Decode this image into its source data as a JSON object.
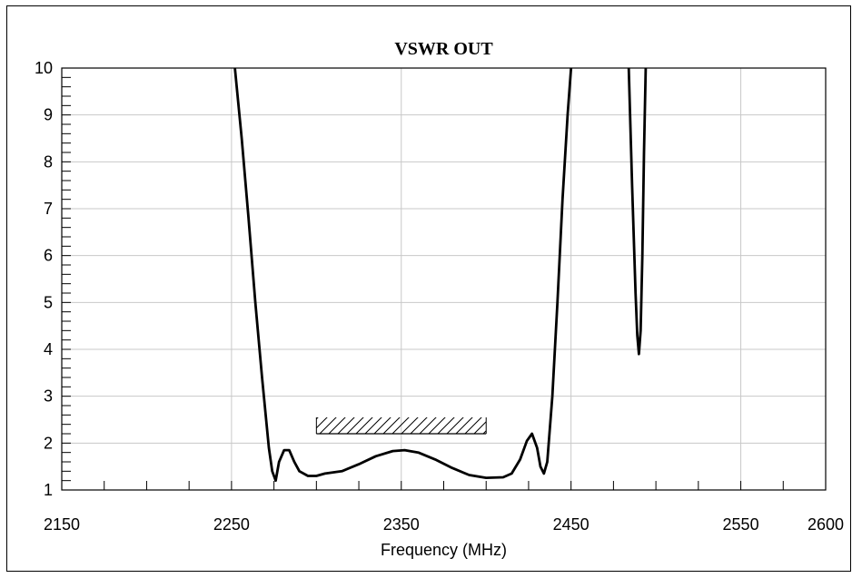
{
  "chart_data": {
    "type": "line",
    "title": "VSWR OUT",
    "xlabel": "Frequency (MHz)",
    "ylabel": "",
    "xlim": [
      2150,
      2600
    ],
    "ylim": [
      1,
      10
    ],
    "xticks": [
      2150,
      2250,
      2350,
      2450,
      2550,
      2600
    ],
    "yticks": [
      1,
      2,
      3,
      4,
      5,
      6,
      7,
      8,
      9,
      10
    ],
    "x_minor_step": 25,
    "y_minor_step": 0.2,
    "grid": true,
    "series": [
      {
        "segments": [
          [
            [
              2252,
              10
            ],
            [
              2256,
              8.5
            ],
            [
              2260,
              6.8
            ],
            [
              2264,
              5.0
            ],
            [
              2268,
              3.4
            ],
            [
              2272,
              1.9
            ],
            [
              2274,
              1.4
            ],
            [
              2276,
              1.2
            ],
            [
              2278,
              1.6
            ],
            [
              2281,
              1.85
            ],
            [
              2284,
              1.85
            ],
            [
              2287,
              1.6
            ],
            [
              2290,
              1.4
            ],
            [
              2295,
              1.3
            ],
            [
              2300,
              1.3
            ],
            [
              2305,
              1.35
            ],
            [
              2315,
              1.4
            ],
            [
              2325,
              1.55
            ],
            [
              2335,
              1.72
            ],
            [
              2345,
              1.83
            ],
            [
              2352,
              1.85
            ],
            [
              2360,
              1.8
            ],
            [
              2370,
              1.65
            ],
            [
              2380,
              1.47
            ],
            [
              2390,
              1.32
            ],
            [
              2400,
              1.26
            ],
            [
              2410,
              1.27
            ],
            [
              2415,
              1.35
            ],
            [
              2420,
              1.65
            ],
            [
              2424,
              2.05
            ],
            [
              2427,
              2.2
            ],
            [
              2430,
              1.9
            ],
            [
              2432,
              1.5
            ],
            [
              2434,
              1.35
            ],
            [
              2436,
              1.6
            ],
            [
              2439,
              3.0
            ],
            [
              2442,
              5.0
            ],
            [
              2445,
              7.2
            ],
            [
              2448,
              9.0
            ],
            [
              2450,
              10
            ]
          ],
          [
            [
              2484,
              10
            ],
            [
              2486,
              7.5
            ],
            [
              2488,
              5.2
            ],
            [
              2489,
              4.3
            ],
            [
              2490,
              3.9
            ],
            [
              2491,
              4.4
            ],
            [
              2492,
              6.0
            ],
            [
              2493,
              8.2
            ],
            [
              2494,
              10
            ]
          ]
        ]
      }
    ],
    "spec_band": {
      "x_start": 2300,
      "x_end": 2400,
      "y": 2.2,
      "hatched": true
    }
  }
}
